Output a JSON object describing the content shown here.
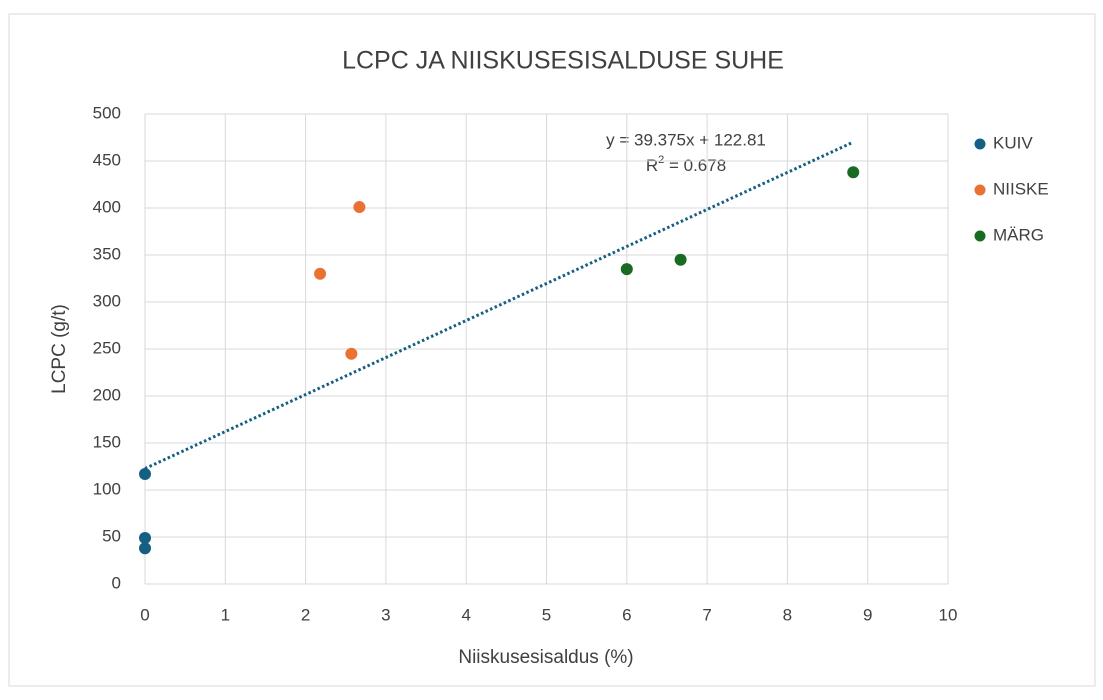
{
  "chart_data": {
    "type": "scatter",
    "title": "LCPC JA NIISKUSESISALDUSE SUHE",
    "x_label": "Niiskusesisaldus (%)",
    "y_label": "LCPC (g/t)",
    "xlim": [
      0,
      10
    ],
    "xticks": [
      0,
      1,
      2,
      3,
      4,
      5,
      6,
      7,
      8,
      9,
      10
    ],
    "ylim": [
      0,
      500
    ],
    "yticks": [
      0,
      50,
      100,
      150,
      200,
      250,
      300,
      350,
      400,
      450,
      500
    ],
    "grid": true,
    "legend": "right",
    "series": [
      {
        "name": "KUIV",
        "color": "#156082",
        "x": [
          0,
          0,
          0
        ],
        "values": [
          117,
          49,
          38
        ]
      },
      {
        "name": "NIISKE",
        "color": "#e97132",
        "x": [
          2.18,
          2.67,
          2.57
        ],
        "values": [
          330,
          401,
          245
        ]
      },
      {
        "name": "MÄRG",
        "color": "#196b24",
        "x": [
          6.0,
          6.67,
          8.82
        ],
        "values": [
          335,
          345,
          438
        ]
      }
    ],
    "trendline": {
      "slope": 39.375,
      "intercept": 122.81,
      "x_range": [
        0,
        8.82
      ],
      "color": "#156082",
      "equation": "y = 39.375x + 122.81",
      "r2_label": "R",
      "r2_sup": "2",
      "r2_value": " = 0.678"
    }
  }
}
